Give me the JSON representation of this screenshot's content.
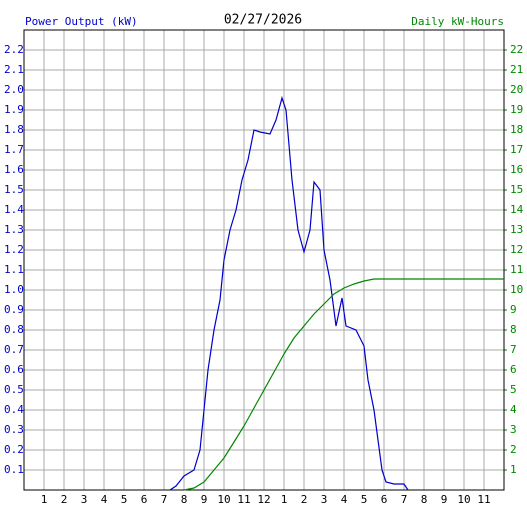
{
  "chart_data": {
    "type": "line",
    "title": "02/27/2026",
    "ylabel": "Power Output (kW)",
    "y2label": "Daily kW-Hours",
    "grid": true,
    "xlim": [
      0,
      24
    ],
    "xticks": [
      1,
      2,
      3,
      4,
      5,
      6,
      7,
      8,
      9,
      10,
      11,
      12,
      {
        "value": 13,
        "label": "1"
      },
      {
        "value": 14,
        "label": "2"
      },
      {
        "value": 15,
        "label": "3"
      },
      {
        "value": 16,
        "label": "4"
      },
      {
        "value": 17,
        "label": "5"
      },
      {
        "value": 18,
        "label": "6"
      },
      {
        "value": 19,
        "label": "7"
      },
      {
        "value": 20,
        "label": "8"
      },
      {
        "value": 21,
        "label": "9"
      },
      {
        "value": 22,
        "label": "10"
      },
      {
        "value": 23,
        "label": "11"
      }
    ],
    "ylim": [
      0,
      2.3
    ],
    "yticks": [
      0.1,
      0.2,
      0.3,
      0.4,
      0.5,
      0.6,
      0.7,
      0.8,
      0.9,
      {
        "value": 1,
        "label": "1.0"
      },
      1.1,
      1.2,
      1.3,
      1.4,
      1.5,
      1.6,
      1.7,
      1.8,
      1.9,
      {
        "value": 2,
        "label": "2.0"
      },
      2.1,
      2.2
    ],
    "y2lim": [
      0,
      23
    ],
    "y2ticks": [
      1,
      2,
      3,
      4,
      5,
      6,
      7,
      8,
      9,
      10,
      11,
      12,
      13,
      14,
      15,
      16,
      17,
      18,
      19,
      20,
      21,
      22
    ],
    "series": [
      {
        "color": "#0000cc",
        "x": [
          7.3,
          7.6,
          8.0,
          8.5,
          8.8,
          9.0,
          9.2,
          9.5,
          9.8,
          10.0,
          10.3,
          10.6,
          10.9,
          11.2,
          11.5,
          11.8,
          12.3,
          12.6,
          12.9,
          13.1,
          13.4,
          13.7,
          14.0,
          14.3,
          14.5,
          14.8,
          15.0,
          15.3,
          15.6,
          15.9,
          16.1,
          16.6,
          17.0,
          17.2,
          17.5,
          17.7,
          17.9,
          18.1,
          18.5,
          19.0,
          19.2
        ],
        "values": [
          0,
          0.02,
          0.07,
          0.1,
          0.2,
          0.4,
          0.6,
          0.8,
          0.95,
          1.15,
          1.3,
          1.4,
          1.55,
          1.65,
          1.8,
          1.79,
          1.78,
          1.85,
          1.96,
          1.9,
          1.55,
          1.3,
          1.19,
          1.3,
          1.54,
          1.5,
          1.2,
          1.05,
          0.82,
          0.96,
          0.82,
          0.8,
          0.72,
          0.55,
          0.4,
          0.25,
          0.1,
          0.04,
          0.03,
          0.03,
          0
        ]
      },
      {
        "color": "#008800",
        "axis": "y2",
        "x": [
          8.0,
          8.5,
          9.0,
          9.5,
          10.0,
          10.5,
          11.0,
          11.5,
          12.0,
          12.5,
          13.0,
          13.5,
          14.0,
          14.5,
          15.0,
          15.5,
          16.0,
          16.5,
          17.0,
          17.5,
          18.0,
          24.0
        ],
        "values": [
          0,
          0.1,
          0.4,
          1.0,
          1.6,
          2.4,
          3.2,
          4.1,
          5.0,
          5.9,
          6.8,
          7.6,
          8.2,
          8.8,
          9.3,
          9.8,
          10.1,
          10.3,
          10.45,
          10.55,
          10.55,
          10.55
        ]
      }
    ]
  }
}
